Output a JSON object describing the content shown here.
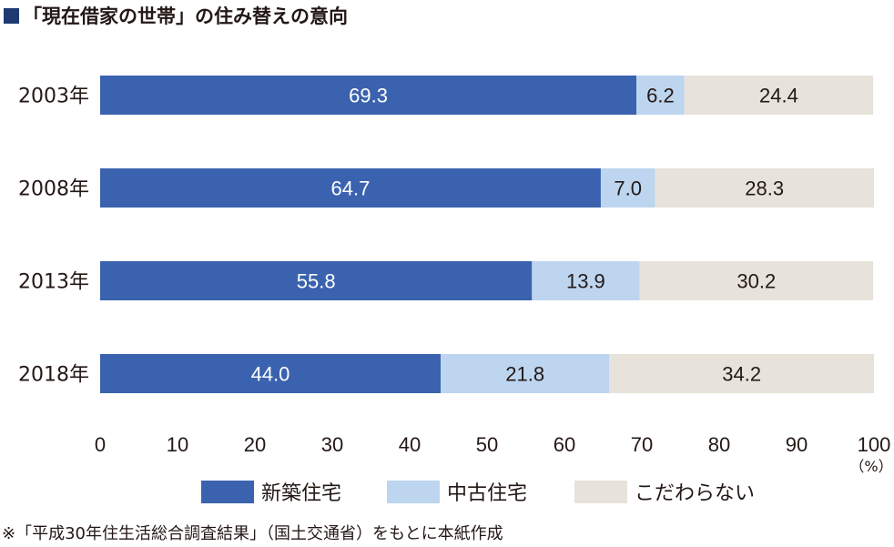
{
  "header": {
    "title": "「現在借家の世帯」の住み替えの意向",
    "marker_color": "#1f3a70"
  },
  "footnote": "※「平成30年住生活総合調査結果」（国土交通省）をもとに本紙作成",
  "chart_data": {
    "type": "bar",
    "orientation": "horizontal",
    "stacked": true,
    "title": "「現在借家の世帯」の住み替えの意向",
    "categories": [
      "2003年",
      "2008年",
      "2013年",
      "2018年"
    ],
    "series": [
      {
        "name": "新築住宅",
        "values": [
          69.3,
          64.7,
          55.8,
          44.0
        ],
        "labels": [
          "69.3",
          "64.7",
          "55.8",
          "44.0"
        ],
        "color": "#3a62ae",
        "label_color": "#ffffff"
      },
      {
        "name": "中古住宅",
        "values": [
          6.2,
          7.0,
          13.9,
          21.8
        ],
        "labels": [
          "6.2",
          "7.0",
          "13.9",
          "21.8"
        ],
        "color": "#bdd5ef",
        "label_color": "#231815"
      },
      {
        "name": "こだわらない",
        "values": [
          24.4,
          28.3,
          30.2,
          34.2
        ],
        "labels": [
          "24.4",
          "28.3",
          "30.2",
          "34.2"
        ],
        "color": "#e7e3da",
        "label_color": "#231815"
      }
    ],
    "xlim": [
      0,
      100
    ],
    "xticks": [
      "0",
      "10",
      "20",
      "30",
      "40",
      "50",
      "60",
      "70",
      "80",
      "90",
      "100"
    ],
    "unit_label": "（%）",
    "grid": false,
    "legend_position": "bottom"
  }
}
